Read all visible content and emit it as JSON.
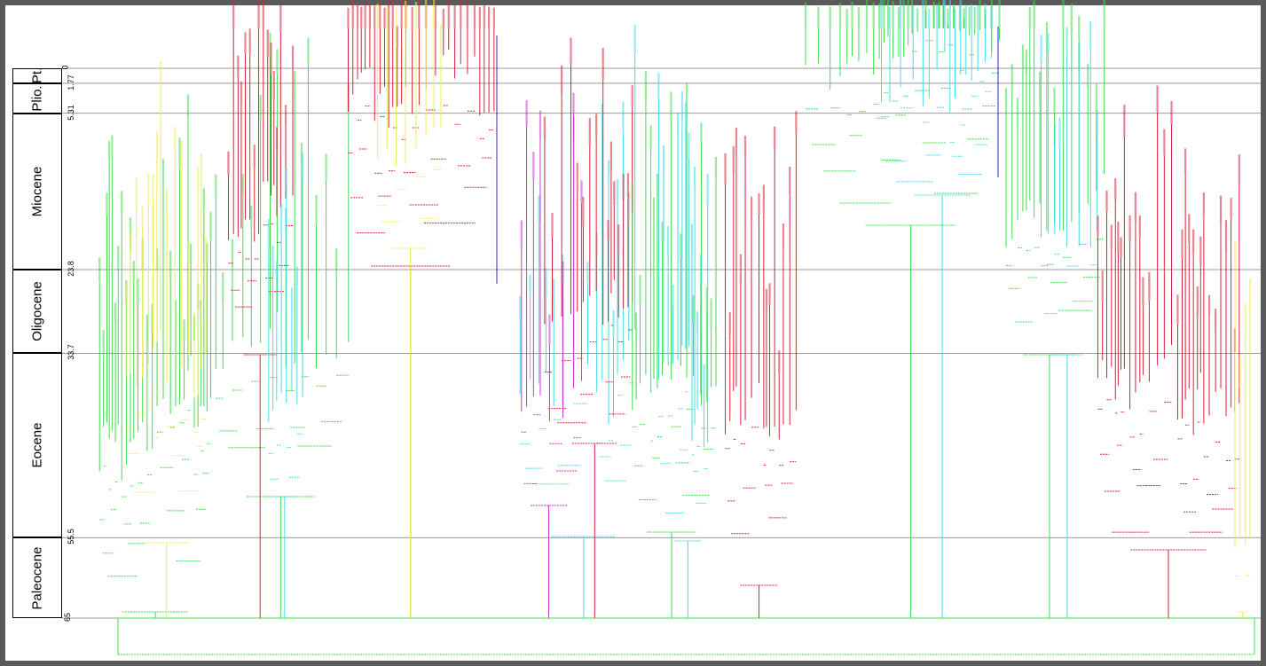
{
  "epochs": [
    {
      "name": "Plio.",
      "start": 5.31,
      "end": 1.77
    },
    {
      "name": "Pt.",
      "start": 1.77,
      "end": 0
    },
    {
      "name": "Miocene",
      "start": 23.8,
      "end": 5.31
    },
    {
      "name": "Oligocene",
      "start": 33.7,
      "end": 23.8
    },
    {
      "name": "Eocene",
      "start": 55.5,
      "end": 33.7
    },
    {
      "name": "Paleocene",
      "start": 65,
      "end": 55.5
    }
  ],
  "boundaries": [
    {
      "label": "0",
      "value": 0
    },
    {
      "label": "1.77",
      "value": 1.77
    },
    {
      "label": "5.31",
      "value": 5.31
    },
    {
      "label": "23.8",
      "value": 23.8
    },
    {
      "label": "33.7",
      "value": 33.7
    },
    {
      "label": "55.5",
      "value": 55.5
    },
    {
      "label": "65",
      "value": 65
    }
  ],
  "colors": {
    "light_green": "#3ddc4a",
    "red": "#d8203a",
    "cyan": "#42dce8",
    "yellow": "#eeee55",
    "magenta": "#cc33cc",
    "blue": "#3322dd",
    "gridline": "#9a9a9a",
    "frame": "#5a5a5a"
  }
}
